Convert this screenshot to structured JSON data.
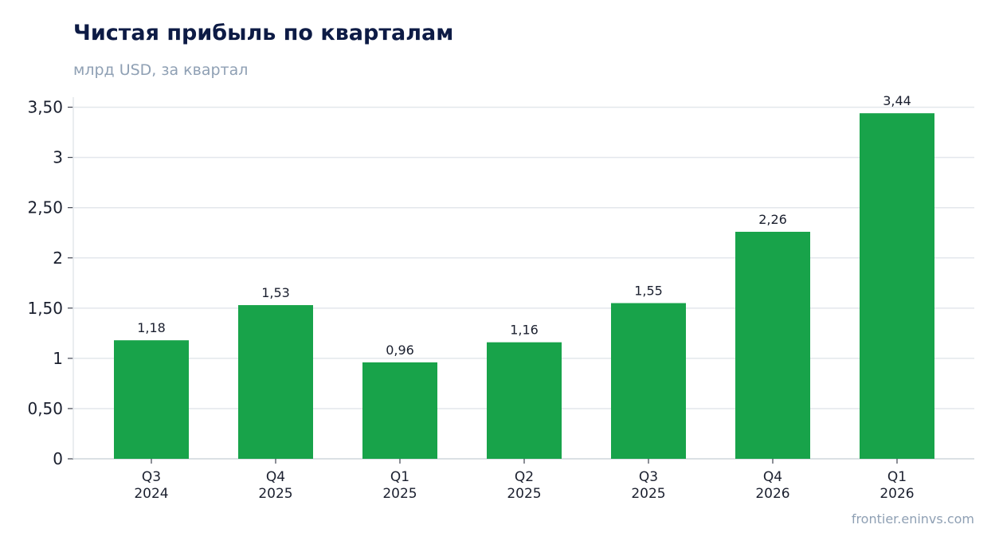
{
  "chart_data": {
    "type": "bar",
    "title": "Чистая прибыль по кварталам",
    "subtitle": "млрд USD, за квартал",
    "categories": [
      [
        "Q3",
        "2024"
      ],
      [
        "Q4",
        "2025"
      ],
      [
        "Q1",
        "2025"
      ],
      [
        "Q2",
        "2025"
      ],
      [
        "Q3",
        "2025"
      ],
      [
        "Q4",
        "2026"
      ],
      [
        "Q1",
        "2026"
      ]
    ],
    "values": [
      1.18,
      1.53,
      0.96,
      1.16,
      1.55,
      2.26,
      3.44
    ],
    "value_labels": [
      "1,18",
      "1,53",
      "0,96",
      "1,16",
      "1,55",
      "2,26",
      "3,44"
    ],
    "yticks": [
      0,
      0.5,
      1,
      1.5,
      2,
      2.5,
      3,
      3.5
    ],
    "ytick_labels": [
      "0",
      "0,50",
      "1",
      "1,50",
      "2",
      "2,50",
      "3",
      "3,50"
    ],
    "ylim": [
      0,
      3.6
    ],
    "bar_color": "#18a34a",
    "grid": true,
    "xlabel": "",
    "ylabel": ""
  },
  "source": "frontier.eninvs.com"
}
